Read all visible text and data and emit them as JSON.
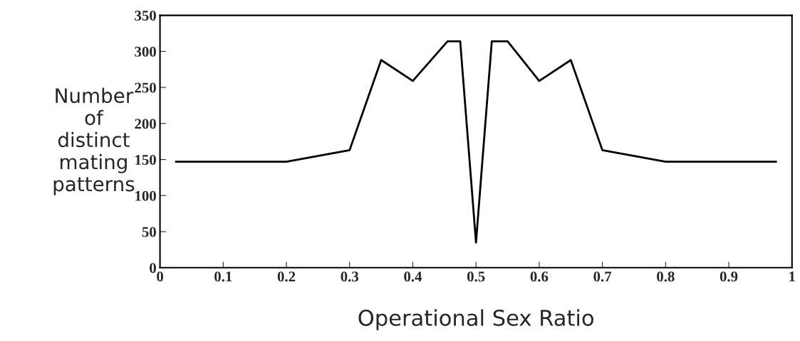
{
  "chart_data": {
    "type": "line",
    "xlabel": "Operational Sex Ratio",
    "ylabel": "Number\nof\ndistinct\nmating\npatterns",
    "x": [
      0.025,
      0.1,
      0.2,
      0.3,
      0.35,
      0.4,
      0.455,
      0.475,
      0.5,
      0.525,
      0.55,
      0.6,
      0.65,
      0.7,
      0.8,
      0.9,
      0.975
    ],
    "series": [
      {
        "color": "#000000",
        "values": [
          147,
          147,
          147,
          163,
          288,
          259,
          314,
          314,
          35,
          314,
          314,
          259,
          288,
          163,
          147,
          147,
          147
        ]
      }
    ],
    "xlim": [
      0,
      1
    ],
    "xticks": [
      0,
      0.1,
      0.2,
      0.3,
      0.4,
      0.5,
      0.6,
      0.7,
      0.8,
      0.9,
      1
    ],
    "ylim": [
      0,
      350
    ],
    "yticks": [
      0,
      50,
      100,
      150,
      200,
      250,
      300,
      350
    ],
    "marker": "none",
    "line_style": "solid"
  }
}
